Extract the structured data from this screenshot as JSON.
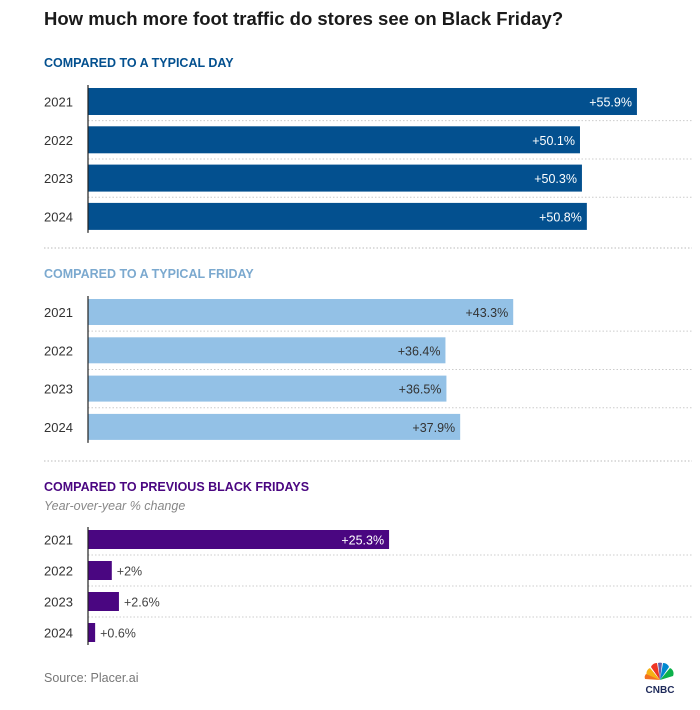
{
  "title": "How much more foot traffic do stores see on Black Friday?",
  "source": "Source: Placer.ai",
  "logo": "CNBC",
  "chart_data": [
    {
      "type": "bar",
      "orientation": "horizontal",
      "title": "COMPARED TO A TYPICAL DAY",
      "subtitle": "",
      "color": "#03508f",
      "categories": [
        "2021",
        "2022",
        "2023",
        "2024"
      ],
      "values": [
        55.9,
        50.1,
        50.3,
        50.8
      ],
      "labels": [
        "+55.9%",
        "+50.1%",
        "+50.3%",
        "+50.8%"
      ],
      "xlim": [
        0,
        60
      ]
    },
    {
      "type": "bar",
      "orientation": "horizontal",
      "title": "COMPARED TO A TYPICAL FRIDAY",
      "subtitle": "",
      "color": "#93c1e6",
      "title_color": "#7ba9cf",
      "categories": [
        "2021",
        "2022",
        "2023",
        "2024"
      ],
      "values": [
        43.3,
        36.4,
        36.5,
        37.9
      ],
      "labels": [
        "+43.3%",
        "+36.4%",
        "+36.5%",
        "+37.9%"
      ],
      "xlim": [
        0,
        60
      ]
    },
    {
      "type": "bar",
      "orientation": "horizontal",
      "title": "COMPARED TO PREVIOUS BLACK FRIDAYS",
      "subtitle": "Year-over-year % change",
      "color": "#4a0681",
      "categories": [
        "2021",
        "2022",
        "2023",
        "2024"
      ],
      "values": [
        25.3,
        2,
        2.6,
        0.6
      ],
      "labels": [
        "+25.3%",
        "+2%",
        "+2.6%",
        "+0.6%"
      ],
      "xlim": [
        0,
        51
      ]
    }
  ]
}
